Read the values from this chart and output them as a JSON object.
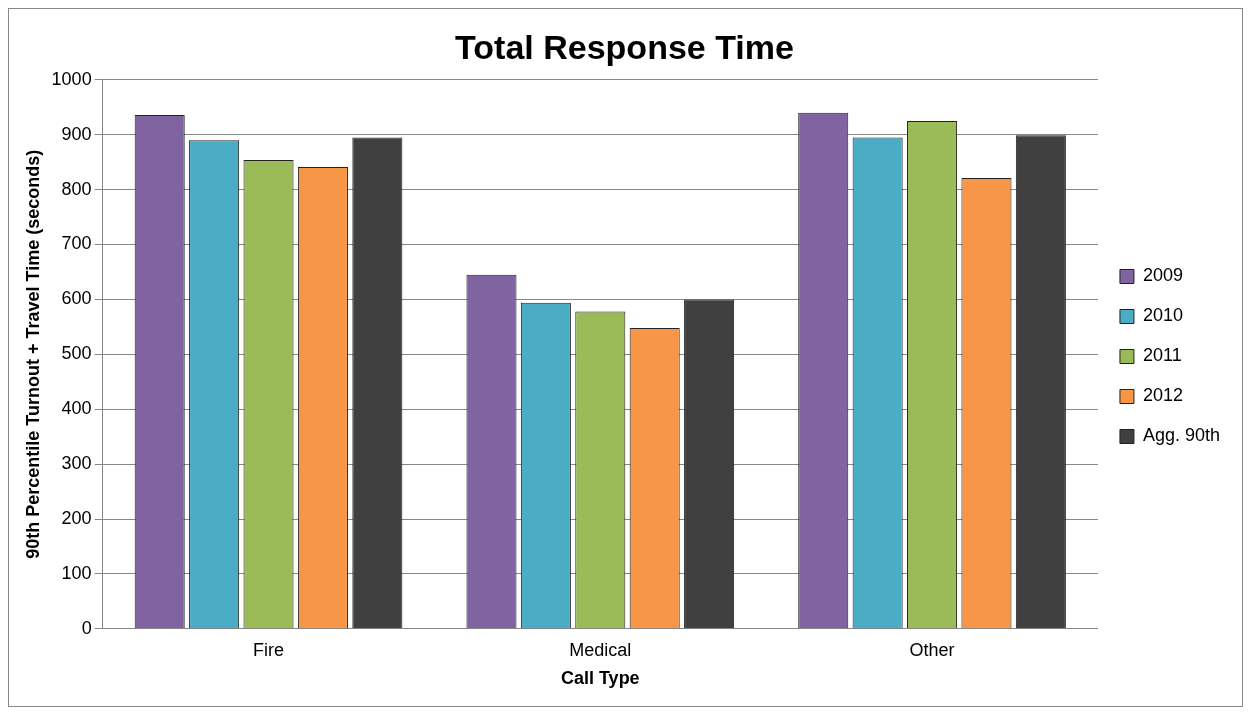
{
  "chart_data": {
    "type": "bar",
    "title": "Total Response Time",
    "xlabel": "Call Type",
    "ylabel": "90th Percentile Turnout + Travel Time (seconds)",
    "categories": [
      "Fire",
      "Medical",
      "Other"
    ],
    "series": [
      {
        "name": "2009",
        "color": "#8064a2",
        "values": [
          936,
          645,
          940
        ]
      },
      {
        "name": "2010",
        "color": "#4bacc6",
        "values": [
          890,
          594,
          895
        ]
      },
      {
        "name": "2011",
        "color": "#9bbb59",
        "values": [
          854,
          578,
          925
        ]
      },
      {
        "name": "2012",
        "color": "#f79646",
        "values": [
          841,
          548,
          821
        ]
      },
      {
        "name": "Agg. 90th",
        "color": "#404040",
        "values": [
          895,
          600,
          899
        ]
      }
    ],
    "ylim": [
      0,
      1000
    ],
    "yticks": [
      0,
      100,
      200,
      300,
      400,
      500,
      600,
      700,
      800,
      900,
      1000
    ],
    "grid": "y",
    "legend": "right"
  }
}
